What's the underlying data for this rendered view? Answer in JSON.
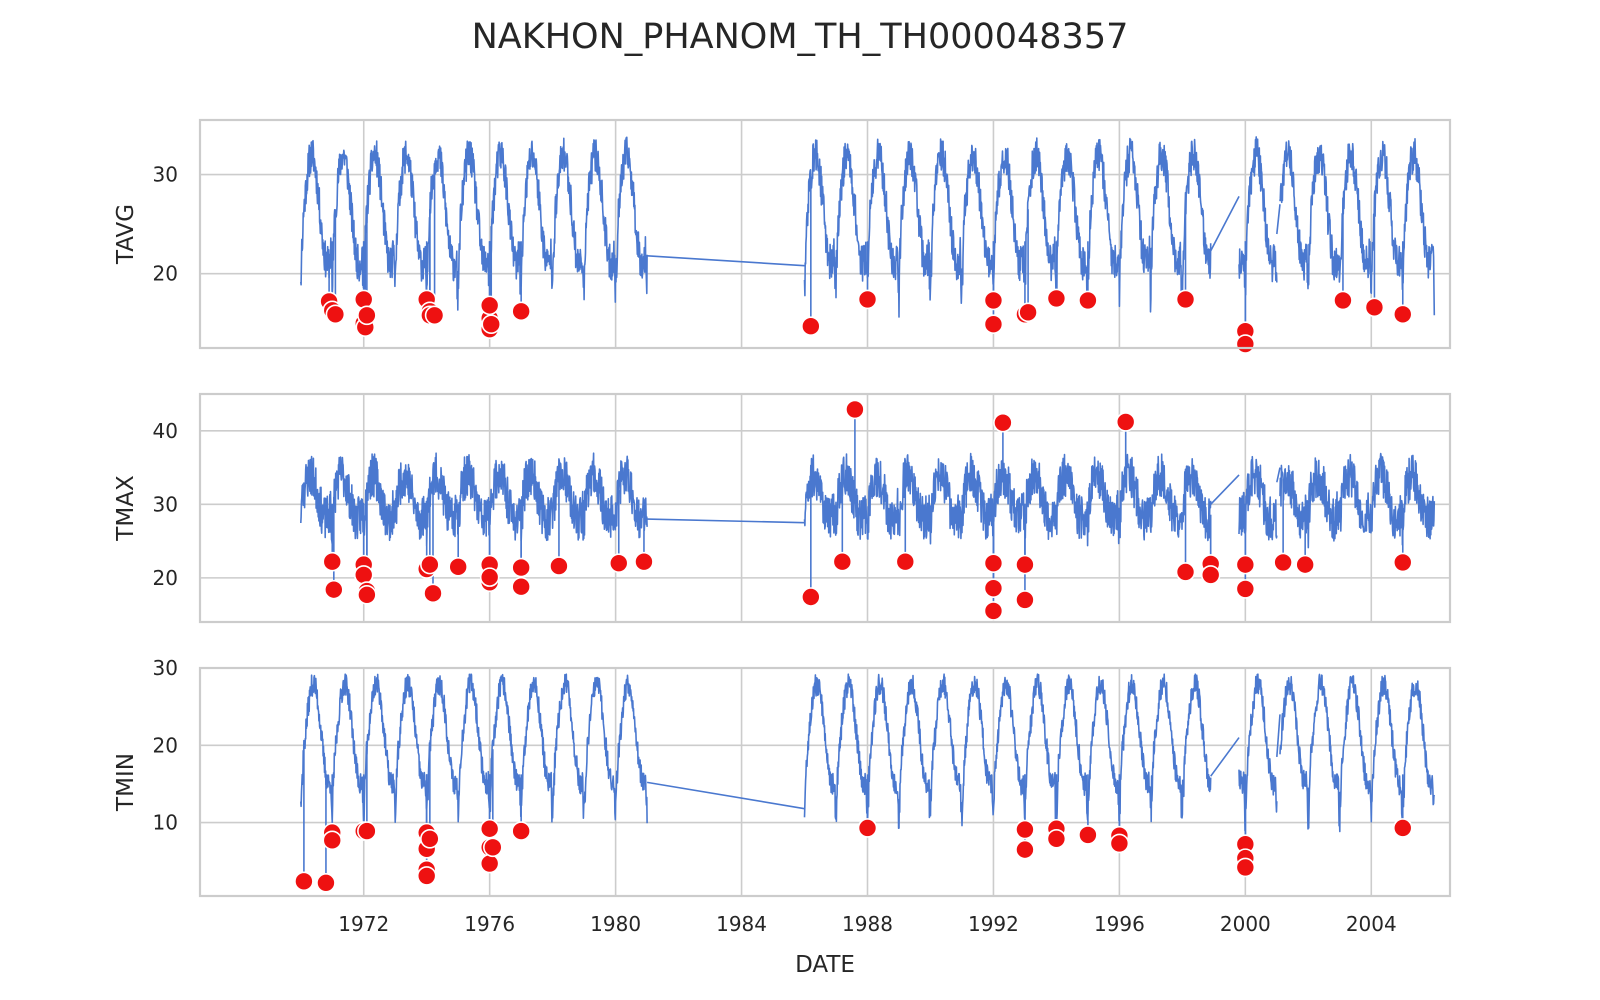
{
  "chart_data": {
    "title": "NAKHON_PHANOM_TH_TH000048357",
    "xlabel": "DATE",
    "x_ticks": [
      "1972",
      "1976",
      "1980",
      "1984",
      "1988",
      "1992",
      "1996",
      "2000",
      "2004"
    ],
    "x_range": [
      1966.8,
      2006.5
    ],
    "grid": true,
    "colors": {
      "line": "#4a78cf",
      "outlier": "#ee1111",
      "grid": "#cccccc"
    },
    "panels": [
      {
        "type": "line",
        "ylabel": "TAVG",
        "ylim": [
          12.5,
          35.5
        ],
        "y_ticks": [
          20,
          30
        ],
        "seasonal": {
          "base": 26.5,
          "amp": 5.5,
          "noise": 1.8,
          "peak": 0.35,
          "seed": 11
        },
        "segments": [
          [
            1970.0,
            1981.0
          ],
          [
            1986.0,
            1998.9
          ],
          [
            1999.8,
            2001.0
          ],
          [
            2001.1,
            2006.0
          ]
        ],
        "bridges": [
          [
            1981.0,
            21.8,
            1986.0,
            20.8
          ],
          [
            1998.9,
            22.3,
            1999.8,
            27.8
          ],
          [
            2001.0,
            24.0,
            2001.1,
            27.0
          ]
        ],
        "outliers": [
          [
            1970.9,
            17.2
          ],
          [
            1971.0,
            16.3
          ],
          [
            1971.1,
            15.9
          ],
          [
            1972.0,
            17.4
          ],
          [
            1972.0,
            15.0
          ],
          [
            1972.05,
            14.6
          ],
          [
            1972.1,
            15.8
          ],
          [
            1974.0,
            17.4
          ],
          [
            1974.1,
            16.2
          ],
          [
            1974.1,
            15.8
          ],
          [
            1974.25,
            15.8
          ],
          [
            1976.0,
            15.5
          ],
          [
            1976.0,
            14.4
          ],
          [
            1976.05,
            14.9
          ],
          [
            1976.0,
            16.8
          ],
          [
            1977.0,
            16.2
          ],
          [
            1986.2,
            14.7
          ],
          [
            1988.0,
            17.4
          ],
          [
            1992.0,
            17.3
          ],
          [
            1992.0,
            14.9
          ],
          [
            1993.0,
            15.9
          ],
          [
            1993.1,
            16.1
          ],
          [
            1994.0,
            17.5
          ],
          [
            1995.0,
            17.3
          ],
          [
            1998.1,
            17.4
          ],
          [
            2000.0,
            14.2
          ],
          [
            2000.0,
            12.9
          ],
          [
            2003.1,
            17.3
          ],
          [
            2004.1,
            16.6
          ],
          [
            2005.0,
            15.9
          ]
        ]
      },
      {
        "type": "line",
        "ylabel": "TMAX",
        "ylim": [
          14,
          45
        ],
        "y_ticks": [
          20,
          30,
          40
        ],
        "seasonal": {
          "base": 31.0,
          "amp": 3.0,
          "noise": 3.0,
          "peak": 0.3,
          "seed": 23
        },
        "segments": [
          [
            1970.0,
            1981.0
          ],
          [
            1986.0,
            1998.9
          ],
          [
            1999.8,
            2001.0
          ],
          [
            2001.1,
            2006.0
          ]
        ],
        "bridges": [
          [
            1981.0,
            28.0,
            1986.0,
            27.5
          ],
          [
            1998.9,
            30.0,
            1999.8,
            34.0
          ],
          [
            2001.0,
            33.0,
            2001.1,
            35.0
          ]
        ],
        "outliers": [
          [
            1971.0,
            22.2
          ],
          [
            1971.05,
            18.4
          ],
          [
            1972.0,
            21.8
          ],
          [
            1972.0,
            20.4
          ],
          [
            1972.1,
            18.2
          ],
          [
            1972.1,
            17.7
          ],
          [
            1974.0,
            21.2
          ],
          [
            1974.1,
            21.8
          ],
          [
            1974.2,
            17.9
          ],
          [
            1975.0,
            21.5
          ],
          [
            1976.0,
            21.8
          ],
          [
            1976.0,
            19.4
          ],
          [
            1976.0,
            20.1
          ],
          [
            1977.0,
            21.4
          ],
          [
            1977.0,
            18.8
          ],
          [
            1978.2,
            21.6
          ],
          [
            1980.1,
            22.0
          ],
          [
            1980.9,
            22.2
          ],
          [
            1986.2,
            17.4
          ],
          [
            1987.2,
            22.2
          ],
          [
            1987.6,
            42.9
          ],
          [
            1989.2,
            22.2
          ],
          [
            1992.0,
            22.0
          ],
          [
            1992.0,
            18.6
          ],
          [
            1992.0,
            15.5
          ],
          [
            1992.3,
            41.1
          ],
          [
            1993.0,
            21.8
          ],
          [
            1993.0,
            17.0
          ],
          [
            1996.2,
            41.2
          ],
          [
            1998.1,
            20.8
          ],
          [
            1998.9,
            21.9
          ],
          [
            1998.9,
            20.4
          ],
          [
            2000.0,
            21.8
          ],
          [
            2000.0,
            18.5
          ],
          [
            2001.2,
            22.1
          ],
          [
            2001.9,
            21.8
          ],
          [
            2005.0,
            22.1
          ]
        ]
      },
      {
        "type": "line",
        "ylabel": "TMIN",
        "ylim": [
          0.5,
          30
        ],
        "y_ticks": [
          10,
          20,
          30
        ],
        "seasonal": {
          "base": 21.5,
          "amp": 6.5,
          "noise": 1.5,
          "peak": 0.4,
          "seed": 37
        },
        "segments": [
          [
            1970.0,
            1981.0
          ],
          [
            1986.0,
            1998.9
          ],
          [
            1999.8,
            2001.0
          ],
          [
            2001.1,
            2006.0
          ]
        ],
        "bridges": [
          [
            1981.0,
            15.2,
            1986.0,
            11.8
          ],
          [
            1998.9,
            16.0,
            1999.8,
            21.0
          ],
          [
            2001.0,
            18.5,
            2001.1,
            24.0
          ]
        ],
        "outliers": [
          [
            1970.1,
            2.4
          ],
          [
            1970.8,
            2.2
          ],
          [
            1971.0,
            8.7
          ],
          [
            1971.0,
            7.7
          ],
          [
            1972.0,
            8.9
          ],
          [
            1972.1,
            8.9
          ],
          [
            1974.0,
            8.7
          ],
          [
            1974.0,
            6.6
          ],
          [
            1974.0,
            3.9
          ],
          [
            1974.0,
            3.1
          ],
          [
            1974.1,
            7.9
          ],
          [
            1976.0,
            9.2
          ],
          [
            1976.0,
            6.8
          ],
          [
            1976.0,
            4.7
          ],
          [
            1976.1,
            6.8
          ],
          [
            1977.0,
            8.9
          ],
          [
            1988.0,
            9.3
          ],
          [
            1993.0,
            9.1
          ],
          [
            1993.0,
            6.5
          ],
          [
            1994.0,
            9.2
          ],
          [
            1994.0,
            7.9
          ],
          [
            1995.0,
            8.4
          ],
          [
            1996.0,
            8.3
          ],
          [
            1996.0,
            7.3
          ],
          [
            2000.0,
            7.2
          ],
          [
            2000.0,
            5.4
          ],
          [
            2000.0,
            4.2
          ],
          [
            2005.0,
            9.3
          ]
        ]
      }
    ]
  }
}
